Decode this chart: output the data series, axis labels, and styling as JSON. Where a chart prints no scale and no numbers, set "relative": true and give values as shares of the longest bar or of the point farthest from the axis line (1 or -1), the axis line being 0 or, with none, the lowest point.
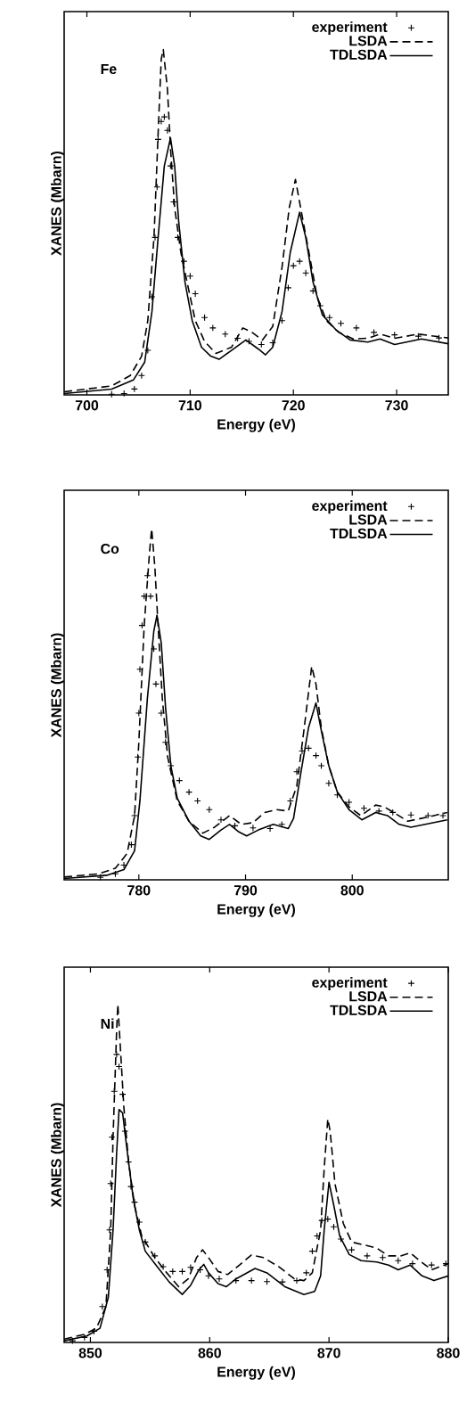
{
  "chart_data": [
    {
      "type": "line",
      "relative": true,
      "xlabel": "Energy (eV)",
      "ylabel": "XANES (Mbarn)",
      "annotations": [
        "Fe"
      ],
      "legend": "top right",
      "xlim": [
        697.8,
        735
      ],
      "xticks": [
        700,
        710,
        720,
        730
      ],
      "series": [
        {
          "name": "experiment",
          "type": "scatter",
          "marker": "cross",
          "color": "#000000",
          "x": [
            702.4,
            703.6,
            704.6,
            705.3,
            705.9,
            706.3,
            706.6,
            706.8,
            706.9,
            707.2,
            707.5,
            707.8,
            708.1,
            708.4,
            708.8,
            709.4,
            710.0,
            710.5,
            711.4,
            712.2,
            713.4,
            714.6,
            715.7,
            716.9,
            718.0,
            718.9,
            719.5,
            720.0,
            720.6,
            721.2,
            721.9,
            722.6,
            723.5,
            724.6,
            726.1,
            727.8,
            729.8,
            732.1,
            734.1
          ],
          "values": [
            0.002,
            0.004,
            0.017,
            0.056,
            0.129,
            0.284,
            0.456,
            0.602,
            0.74,
            0.792,
            0.805,
            0.766,
            0.663,
            0.559,
            0.456,
            0.387,
            0.344,
            0.293,
            0.224,
            0.194,
            0.176,
            0.164,
            0.155,
            0.146,
            0.151,
            0.215,
            0.31,
            0.374,
            0.387,
            0.353,
            0.301,
            0.258,
            0.224,
            0.207,
            0.194,
            0.181,
            0.174,
            0.17,
            0.165
          ]
        },
        {
          "name": "LSDA",
          "type": "line",
          "line_style": "dashed",
          "color": "#000000",
          "x": [
            697.8,
            702.4,
            704.2,
            705.3,
            705.9,
            706.5,
            706.9,
            707.2,
            707.4,
            707.8,
            708.1,
            708.5,
            709.1,
            709.7,
            710.5,
            711.4,
            712.5,
            714.0,
            715.1,
            716.0,
            717.0,
            718.0,
            718.9,
            719.6,
            720.2,
            720.7,
            721.5,
            722.3,
            723.2,
            724.4,
            725.8,
            727.2,
            728.4,
            729.8,
            732.1,
            735.0
          ],
          "values": [
            0.009,
            0.026,
            0.056,
            0.112,
            0.215,
            0.456,
            0.757,
            0.972,
            1.0,
            0.886,
            0.714,
            0.542,
            0.413,
            0.327,
            0.215,
            0.155,
            0.12,
            0.138,
            0.194,
            0.181,
            0.159,
            0.198,
            0.37,
            0.542,
            0.624,
            0.542,
            0.413,
            0.284,
            0.215,
            0.181,
            0.162,
            0.164,
            0.176,
            0.164,
            0.176,
            0.165
          ]
        },
        {
          "name": "TDLSDA",
          "type": "line",
          "line_style": "solid",
          "color": "#000000",
          "x": [
            697.8,
            702.4,
            704.5,
            705.6,
            706.3,
            706.9,
            707.5,
            708.1,
            708.5,
            708.9,
            709.5,
            710.2,
            711.1,
            712.0,
            712.8,
            714.0,
            715.4,
            716.6,
            717.3,
            718.0,
            718.9,
            719.7,
            720.6,
            721.2,
            721.9,
            722.8,
            724.1,
            725.5,
            727.2,
            728.4,
            729.8,
            732.4,
            735.0
          ],
          "values": [
            0.004,
            0.017,
            0.043,
            0.095,
            0.241,
            0.456,
            0.663,
            0.744,
            0.663,
            0.499,
            0.327,
            0.215,
            0.138,
            0.112,
            0.103,
            0.129,
            0.159,
            0.133,
            0.116,
            0.138,
            0.241,
            0.413,
            0.529,
            0.456,
            0.327,
            0.232,
            0.189,
            0.159,
            0.153,
            0.162,
            0.146,
            0.162,
            0.148
          ]
        }
      ]
    },
    {
      "type": "line",
      "relative": true,
      "xlabel": "Energy (eV)",
      "ylabel": "XANES (Mbarn)",
      "annotations": [
        "Co"
      ],
      "legend": "top right",
      "xlim": [
        773,
        809
      ],
      "xticks": [
        780,
        790,
        800
      ],
      "series": [
        {
          "name": "experiment",
          "type": "scatter",
          "marker": "cross",
          "color": "#000000",
          "x": [
            776.4,
            777.8,
            778.6,
            779.3,
            779.6,
            779.9,
            780.0,
            780.1,
            780.3,
            780.5,
            780.8,
            781.1,
            781.4,
            781.6,
            782.1,
            782.5,
            783.0,
            783.8,
            784.7,
            785.5,
            786.6,
            787.7,
            789.0,
            790.7,
            792.3,
            793.4,
            794.2,
            794.8,
            795.3,
            795.9,
            796.6,
            797.1,
            797.8,
            798.6,
            799.7,
            801.1,
            802.5,
            803.8,
            805.5,
            807.1,
            808.5
          ],
          "values": [
            0.007,
            0.017,
            0.042,
            0.1,
            0.183,
            0.35,
            0.475,
            0.6,
            0.725,
            0.808,
            0.867,
            0.808,
            0.658,
            0.558,
            0.475,
            0.392,
            0.325,
            0.283,
            0.25,
            0.225,
            0.2,
            0.171,
            0.154,
            0.148,
            0.146,
            0.158,
            0.225,
            0.308,
            0.367,
            0.375,
            0.354,
            0.325,
            0.275,
            0.242,
            0.221,
            0.204,
            0.196,
            0.192,
            0.185,
            0.183,
            0.183
          ]
        },
        {
          "name": "LSDA",
          "type": "line",
          "line_style": "dashed",
          "color": "#000000",
          "x": [
            773.0,
            776.2,
            777.8,
            778.9,
            779.6,
            780.0,
            780.5,
            781.0,
            781.2,
            781.5,
            781.8,
            782.2,
            782.7,
            783.6,
            784.7,
            786.0,
            787.1,
            788.5,
            789.6,
            790.7,
            791.8,
            792.9,
            794.0,
            794.8,
            795.5,
            796.2,
            796.6,
            797.1,
            797.8,
            798.6,
            799.7,
            800.8,
            802.2,
            803.0,
            804.1,
            805.2,
            807.1,
            808.9
          ],
          "values": [
            0.008,
            0.017,
            0.033,
            0.075,
            0.183,
            0.392,
            0.725,
            0.933,
            1.0,
            0.892,
            0.725,
            0.517,
            0.35,
            0.225,
            0.167,
            0.133,
            0.15,
            0.183,
            0.158,
            0.163,
            0.192,
            0.2,
            0.196,
            0.267,
            0.433,
            0.608,
            0.558,
            0.433,
            0.325,
            0.25,
            0.208,
            0.183,
            0.213,
            0.208,
            0.188,
            0.167,
            0.179,
            0.192
          ]
        },
        {
          "name": "TDLSDA",
          "type": "line",
          "line_style": "solid",
          "color": "#000000",
          "x": [
            773.0,
            777.0,
            778.6,
            779.6,
            780.1,
            780.8,
            781.4,
            781.7,
            782.1,
            782.5,
            783.0,
            783.6,
            784.7,
            785.8,
            786.6,
            787.7,
            788.5,
            789.3,
            790.1,
            791.2,
            792.6,
            794.0,
            794.5,
            795.2,
            795.9,
            796.6,
            797.1,
            797.8,
            798.6,
            799.7,
            800.9,
            802.2,
            803.3,
            804.4,
            805.5,
            808.9
          ],
          "values": [
            0.004,
            0.013,
            0.029,
            0.083,
            0.225,
            0.517,
            0.708,
            0.754,
            0.675,
            0.492,
            0.325,
            0.233,
            0.167,
            0.125,
            0.115,
            0.142,
            0.158,
            0.138,
            0.125,
            0.142,
            0.158,
            0.146,
            0.175,
            0.308,
            0.433,
            0.504,
            0.425,
            0.325,
            0.25,
            0.2,
            0.171,
            0.192,
            0.183,
            0.158,
            0.15,
            0.171
          ]
        }
      ]
    },
    {
      "type": "line",
      "relative": true,
      "xlabel": "Energy (eV)",
      "ylabel": "XANES (Mbarn)",
      "annotations": [
        "Ni"
      ],
      "legend": "top right",
      "xlim": [
        847.8,
        880
      ],
      "xticks": [
        850,
        860,
        870,
        880
      ],
      "series": [
        {
          "name": "experiment",
          "type": "scatter",
          "marker": "cross",
          "color": "#000000",
          "x": [
            848.5,
            849.5,
            850.3,
            851.0,
            851.4,
            851.6,
            851.7,
            851.8,
            852.0,
            852.2,
            852.4,
            852.7,
            852.9,
            853.2,
            853.4,
            853.7,
            854.1,
            854.6,
            855.4,
            856.1,
            856.9,
            857.7,
            858.4,
            859.2,
            859.9,
            860.8,
            862.2,
            863.5,
            864.8,
            866.1,
            867.3,
            868.1,
            868.6,
            869.0,
            869.4,
            869.9,
            870.4,
            871.0,
            871.9,
            873.2,
            874.5,
            875.8,
            877.0,
            878.6,
            879.8
          ],
          "values": [
            0.005,
            0.015,
            0.033,
            0.106,
            0.215,
            0.333,
            0.47,
            0.607,
            0.743,
            0.852,
            0.816,
            0.734,
            0.625,
            0.534,
            0.461,
            0.415,
            0.356,
            0.297,
            0.256,
            0.224,
            0.21,
            0.21,
            0.222,
            0.215,
            0.197,
            0.188,
            0.183,
            0.183,
            0.18,
            0.179,
            0.183,
            0.206,
            0.27,
            0.315,
            0.361,
            0.365,
            0.342,
            0.306,
            0.274,
            0.256,
            0.251,
            0.242,
            0.233,
            0.229,
            0.233
          ]
        },
        {
          "name": "LSDA",
          "type": "line",
          "line_style": "dashed",
          "color": "#000000",
          "x": [
            847.8,
            849.5,
            850.5,
            851.3,
            851.7,
            851.9,
            852.2,
            852.3,
            852.5,
            852.8,
            853.2,
            853.7,
            854.3,
            855.4,
            856.4,
            857.4,
            858.2,
            858.9,
            859.4,
            859.9,
            860.7,
            861.5,
            862.5,
            863.5,
            864.5,
            865.8,
            867.1,
            867.9,
            868.6,
            869.3,
            869.6,
            869.9,
            870.1,
            870.5,
            871.2,
            871.9,
            873.0,
            874.0,
            875.0,
            876.0,
            876.8,
            877.6,
            878.6,
            880.0
          ],
          "values": [
            0.01,
            0.024,
            0.042,
            0.106,
            0.333,
            0.607,
            0.925,
            1.0,
            0.88,
            0.698,
            0.534,
            0.406,
            0.315,
            0.251,
            0.206,
            0.165,
            0.188,
            0.251,
            0.274,
            0.251,
            0.21,
            0.201,
            0.229,
            0.259,
            0.251,
            0.224,
            0.188,
            0.183,
            0.206,
            0.333,
            0.515,
            0.661,
            0.625,
            0.47,
            0.352,
            0.297,
            0.288,
            0.279,
            0.256,
            0.256,
            0.265,
            0.242,
            0.215,
            0.233
          ]
        },
        {
          "name": "TDLSDA",
          "type": "line",
          "line_style": "solid",
          "color": "#000000",
          "x": [
            847.8,
            849.7,
            850.8,
            851.5,
            851.9,
            852.2,
            852.4,
            852.7,
            853.1,
            853.6,
            854.1,
            854.6,
            855.6,
            856.6,
            857.7,
            858.4,
            859.1,
            859.5,
            859.9,
            860.7,
            861.4,
            862.2,
            863.8,
            864.8,
            866.3,
            867.9,
            868.8,
            869.3,
            869.6,
            870.0,
            870.4,
            870.9,
            871.7,
            872.7,
            874.0,
            875.0,
            875.8,
            876.8,
            877.8,
            878.8,
            880.0
          ],
          "values": [
            0.005,
            0.019,
            0.042,
            0.133,
            0.333,
            0.561,
            0.689,
            0.679,
            0.561,
            0.424,
            0.333,
            0.27,
            0.224,
            0.179,
            0.142,
            0.169,
            0.215,
            0.231,
            0.206,
            0.174,
            0.165,
            0.188,
            0.219,
            0.206,
            0.165,
            0.142,
            0.151,
            0.197,
            0.333,
            0.474,
            0.406,
            0.315,
            0.26,
            0.242,
            0.238,
            0.229,
            0.215,
            0.229,
            0.197,
            0.183,
            0.197
          ]
        }
      ]
    }
  ]
}
